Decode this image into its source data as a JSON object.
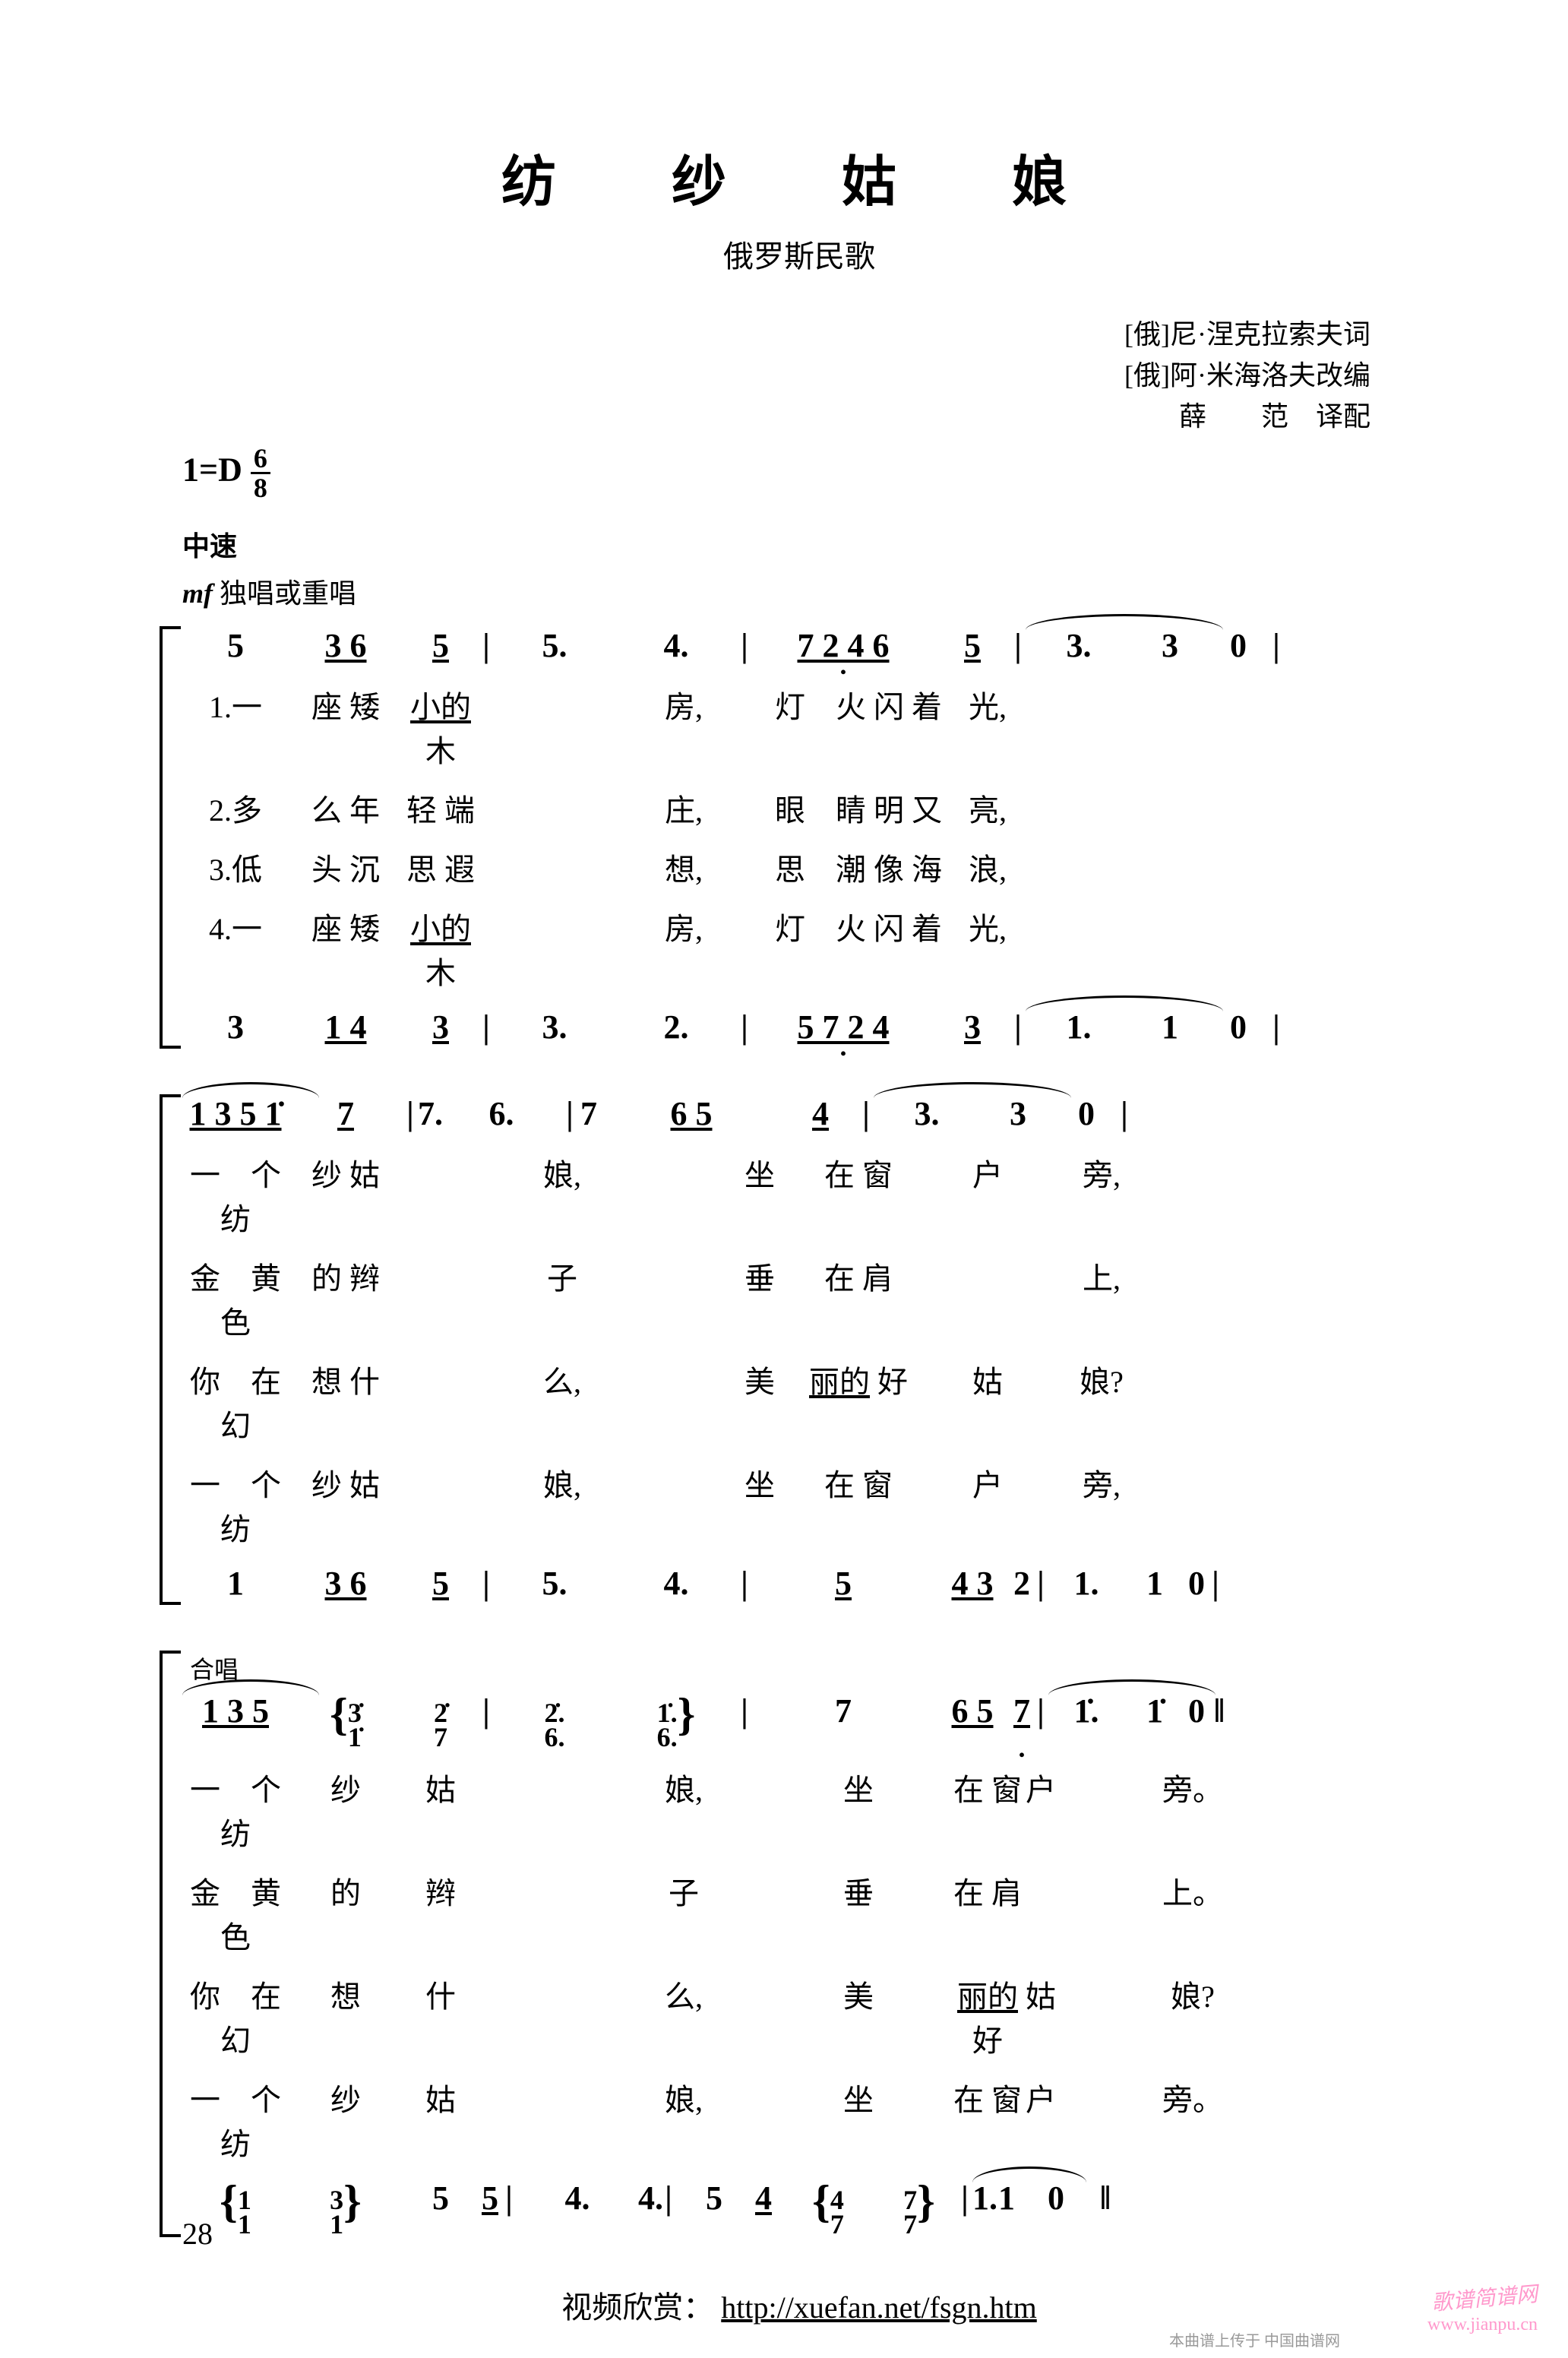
{
  "title": "纺　纱　姑　娘",
  "subtitle": "俄罗斯民歌",
  "credits": [
    "[俄]尼·涅克拉索夫词",
    "[俄]阿·米海洛夫改编",
    "薛　　范　译配"
  ],
  "key": "1=D",
  "time_num": "6",
  "time_den": "8",
  "tempo": "中速",
  "dynamic_mark": "mf",
  "dynamic_text": " 独唱或重唱",
  "chorus_label": "合唱",
  "systems": [
    {
      "voice1": [
        "5",
        "3 6",
        "5",
        "|",
        "5.",
        "4.",
        "|",
        "7 2 4 6",
        "5",
        "|",
        "3.",
        "3",
        "0",
        "|"
      ],
      "voice1_marks": {
        "1": "ul",
        "2": "ul",
        "7": "ul udot",
        "8": "ul",
        "10": "slur2"
      },
      "lyrics": [
        [
          "1.一",
          "座 矮",
          "小的 木",
          "",
          "",
          "房,",
          "",
          "灯　火 闪 着",
          "光,",
          "",
          "",
          "",
          "",
          ""
        ],
        [
          "2.多",
          "么 年",
          "轻 端",
          "",
          "",
          "庄,",
          "",
          "眼　睛 明 又",
          "亮,",
          "",
          "",
          "",
          "",
          ""
        ],
        [
          "3.低",
          "头 沉",
          "思 遐",
          "",
          "",
          "想,",
          "",
          "思　潮 像 海",
          "浪,",
          "",
          "",
          "",
          "",
          ""
        ],
        [
          "4.一",
          "座 矮",
          "小的 木",
          "",
          "",
          "房,",
          "",
          "灯　火 闪 着",
          "光,",
          "",
          "",
          "",
          "",
          ""
        ]
      ],
      "voice2": [
        "3",
        "1 4",
        "3",
        "|",
        "3.",
        "2.",
        "|",
        "5 7 2 4",
        "3",
        "|",
        "1.",
        "1",
        "0",
        "|"
      ],
      "voice2_marks": {
        "1": "ul",
        "2": "ul",
        "7": "ul udot",
        "8": "ul",
        "10": "slur2"
      }
    },
    {
      "voice1": [
        "1 3 5 1̇",
        "7",
        "|",
        "7.",
        "6.",
        "|",
        "7",
        "6 5",
        "4",
        "|",
        "3.",
        "3",
        "0",
        "|"
      ],
      "voice1_marks": {
        "0": "ul slur",
        "1": "ul",
        "7": "ul",
        "8": "ul",
        "10": "slur2"
      },
      "lyrics": [
        [
          "一　个 纺",
          "纱 姑",
          "",
          "",
          "娘,",
          "",
          "坐",
          "在 窗",
          "户",
          "",
          "旁,",
          "",
          "",
          ""
        ],
        [
          "金　黄 色",
          "的 辫",
          "",
          "",
          "子",
          "",
          "垂",
          "在 肩",
          "",
          "",
          "上,",
          "",
          "",
          ""
        ],
        [
          "你　在 幻",
          "想 什",
          "",
          "",
          "么,",
          "",
          "美",
          "丽的 好",
          "姑",
          "",
          "娘?",
          "",
          "",
          ""
        ],
        [
          "一　个 纺",
          "纱 姑",
          "",
          "",
          "娘,",
          "",
          "坐",
          "在 窗",
          "户",
          "",
          "旁,",
          "",
          "",
          ""
        ]
      ],
      "voice2": [
        "1",
        "3 6",
        "5",
        "|",
        "5.",
        "4.",
        "|",
        "5",
        "4 3",
        "2",
        "|",
        "1.",
        "1",
        "0",
        "|"
      ],
      "voice2_marks": {
        "1": "ul",
        "2": "ul",
        "7": "ul",
        "8": "ul",
        "10": "slur2"
      }
    },
    {
      "section": "合唱",
      "voice1": [
        "1 3 5",
        "{3̇/1̇",
        "2̇/7",
        "|",
        "2̇./6.",
        "1̇./6.}",
        "|",
        "7",
        "6 5",
        "7",
        "|",
        "1̇.",
        "1̇",
        "0",
        "‖"
      ],
      "voice1_marks": {
        "0": "ul slur",
        "2": "ul",
        "8": "ul",
        "9": "ul udot",
        "11": "slur2"
      },
      "lyrics": [
        [
          "一　个 纺",
          "纱",
          "姑",
          "",
          "",
          "娘,",
          "",
          "坐",
          "在 窗",
          "户",
          "",
          "旁。",
          "",
          "",
          ""
        ],
        [
          "金　黄 色",
          "的",
          "辫",
          "",
          "",
          "子",
          "",
          "垂",
          "在 肩",
          "",
          "",
          "上。",
          "",
          "",
          ""
        ],
        [
          "你　在 幻",
          "想",
          "什",
          "",
          "",
          "么,",
          "",
          "美",
          "丽的 好",
          "姑",
          "",
          "娘?",
          "",
          "",
          ""
        ],
        [
          "一　个 纺",
          "纱",
          "姑",
          "",
          "",
          "娘,",
          "",
          "坐",
          "在 窗",
          "户",
          "",
          "旁。",
          "",
          "",
          ""
        ]
      ],
      "voice2": [
        "{1/1",
        "3/1}",
        "5",
        "5",
        "|",
        "4.",
        "4.",
        "|",
        "5",
        "4",
        "{4/7",
        "7/7}",
        "|",
        "1.",
        "1",
        "0",
        "‖"
      ],
      "voice2_marks": {
        "1": "ul",
        "3": "ul",
        "9": "ul",
        "11": "ul",
        "13": "slur2"
      }
    }
  ],
  "footer_text": "视频欣赏：",
  "footer_url": "http://xuefan.net/fsgn.htm",
  "page_number": "28",
  "watermark1": "歌谱简谱网",
  "watermark2": "www.jianpu.cn",
  "bottom_note": "本曲谱上传于 中国曲谱网"
}
